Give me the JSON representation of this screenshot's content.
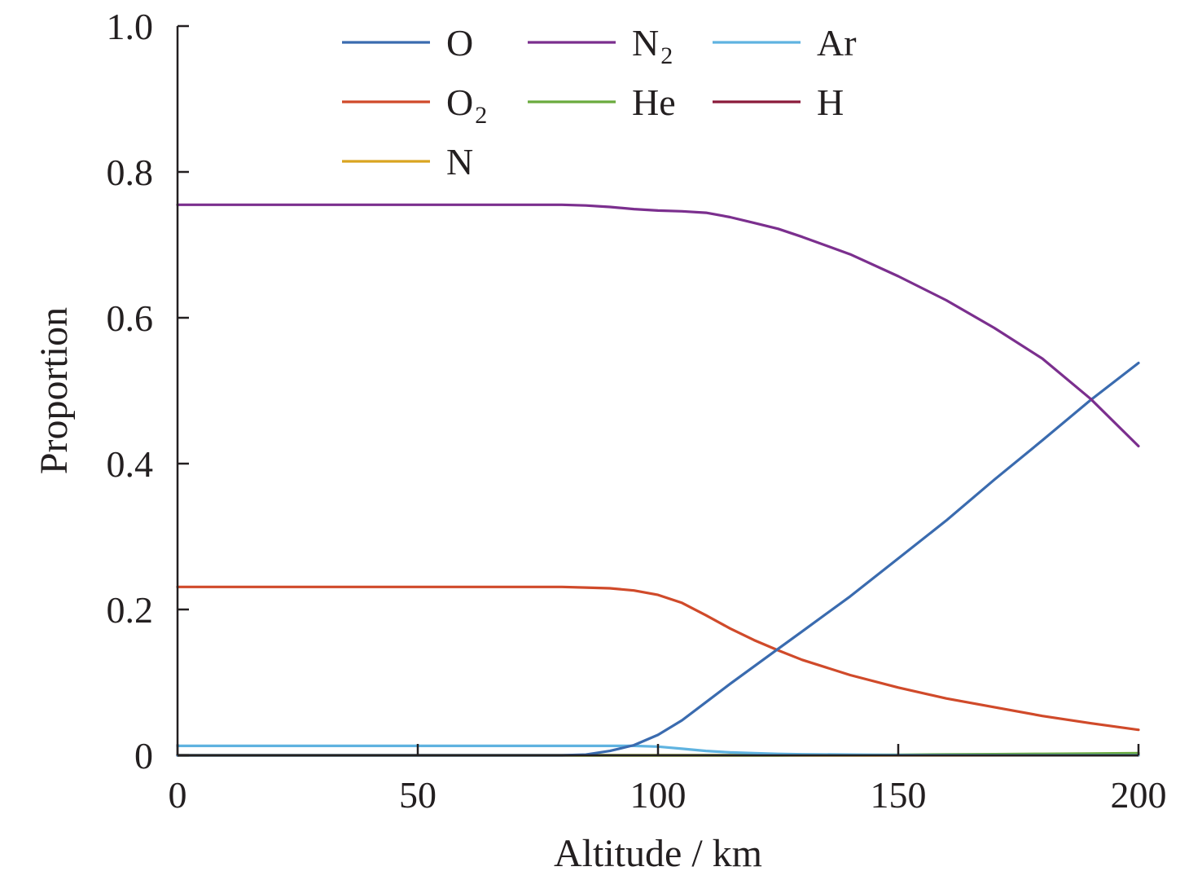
{
  "chart_data": {
    "type": "line",
    "xlabel": "Altitude / km",
    "ylabel": "Proportion",
    "xlim": [
      0,
      200
    ],
    "ylim": [
      0,
      1.0
    ],
    "xticks": [
      0,
      50,
      100,
      150,
      200
    ],
    "xtick_labels": [
      "0",
      "50",
      "100",
      "150",
      "200"
    ],
    "yticks": [
      0,
      0.2,
      0.4,
      0.6,
      0.8,
      1.0
    ],
    "ytick_labels": [
      "0",
      "0.2",
      "0.4",
      "0.6",
      "0.8",
      "1.0"
    ],
    "grid": false,
    "legend_position": "top",
    "x": [
      0,
      10,
      20,
      30,
      40,
      50,
      60,
      70,
      80,
      85,
      90,
      95,
      100,
      105,
      110,
      115,
      120,
      125,
      130,
      140,
      150,
      160,
      170,
      180,
      190,
      200
    ],
    "series": [
      {
        "name": "O",
        "label_base": "O",
        "label_sub": "",
        "color": "#3a6baf",
        "values": [
          0,
          0,
          0,
          0,
          0,
          0,
          0,
          0,
          0,
          0.001,
          0.006,
          0.014,
          0.028,
          0.048,
          0.073,
          0.098,
          0.122,
          0.146,
          0.17,
          0.218,
          0.27,
          0.322,
          0.378,
          0.432,
          0.487,
          0.538
        ]
      },
      {
        "name": "N2",
        "label_base": "N",
        "label_sub": "2",
        "color": "#7b2f8e",
        "values": [
          0.755,
          0.755,
          0.755,
          0.755,
          0.755,
          0.755,
          0.755,
          0.755,
          0.755,
          0.754,
          0.752,
          0.749,
          0.747,
          0.746,
          0.744,
          0.738,
          0.73,
          0.722,
          0.711,
          0.687,
          0.657,
          0.624,
          0.586,
          0.544,
          0.489,
          0.424
        ]
      },
      {
        "name": "Ar",
        "label_base": "Ar",
        "label_sub": "",
        "color": "#5fb3e0",
        "values": [
          0.013,
          0.013,
          0.013,
          0.013,
          0.013,
          0.013,
          0.013,
          0.013,
          0.013,
          0.013,
          0.013,
          0.013,
          0.012,
          0.009,
          0.006,
          0.004,
          0.003,
          0.002,
          0.0015,
          0.001,
          0.0005,
          0.0003,
          0.0002,
          0.0001,
          0.0001,
          0.0001
        ]
      },
      {
        "name": "O2",
        "label_base": "O",
        "label_sub": "2",
        "color": "#d04a2a",
        "values": [
          0.231,
          0.231,
          0.231,
          0.231,
          0.231,
          0.231,
          0.231,
          0.231,
          0.231,
          0.23,
          0.229,
          0.226,
          0.22,
          0.209,
          0.192,
          0.174,
          0.158,
          0.144,
          0.131,
          0.11,
          0.093,
          0.078,
          0.066,
          0.054,
          0.044,
          0.035
        ]
      },
      {
        "name": "He",
        "label_base": "He",
        "label_sub": "",
        "color": "#6aab3e",
        "values": [
          0,
          0,
          0,
          0,
          0,
          0,
          0,
          0,
          0,
          0,
          0,
          0,
          0,
          0,
          0,
          0,
          0,
          0,
          0.0002,
          0.0005,
          0.0008,
          0.0012,
          0.0016,
          0.002,
          0.0025,
          0.003
        ]
      },
      {
        "name": "H",
        "label_base": "H",
        "label_sub": "",
        "color": "#8b1a3a",
        "values": [
          0,
          0,
          0,
          0,
          0,
          0,
          0,
          0,
          0,
          0,
          0,
          0,
          0,
          0,
          0,
          0,
          0,
          0,
          0,
          0,
          0,
          0,
          0,
          0,
          0,
          0
        ]
      },
      {
        "name": "N",
        "label_base": "N",
        "label_sub": "",
        "color": "#d9a520",
        "values": [
          0,
          0,
          0,
          0,
          0,
          0,
          0,
          0,
          0,
          0,
          0,
          0,
          0,
          0,
          0,
          0,
          0,
          0,
          0,
          0,
          0,
          0,
          0,
          0,
          0,
          0
        ]
      }
    ]
  }
}
